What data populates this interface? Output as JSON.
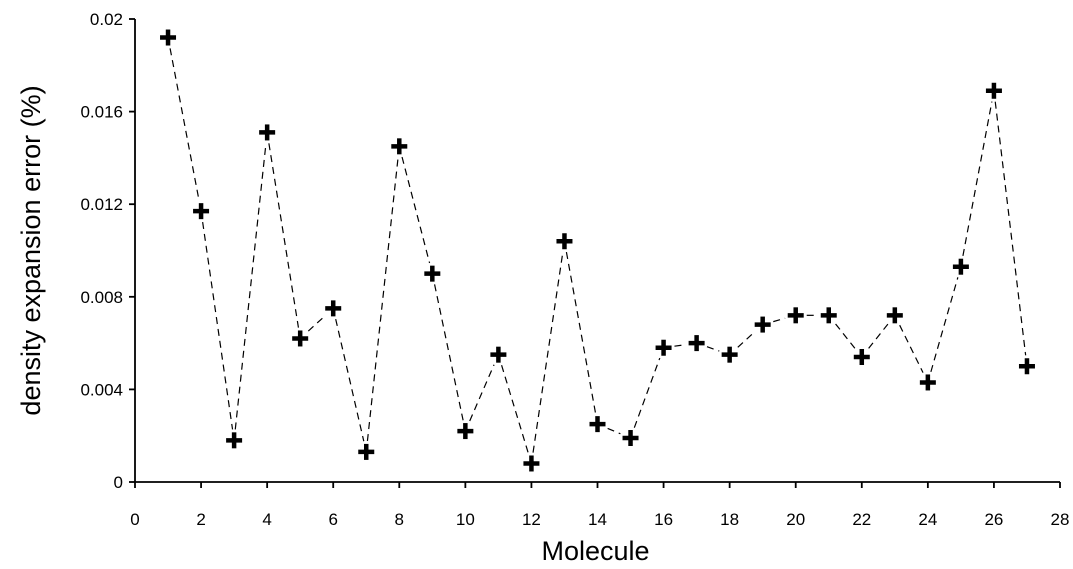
{
  "chart_data": {
    "type": "line",
    "title": "",
    "xlabel": "Molecule",
    "ylabel": "density expansion error (%)",
    "xlim": [
      0,
      28
    ],
    "ylim": [
      0,
      0.02
    ],
    "xticks": [
      0,
      2,
      4,
      6,
      8,
      10,
      12,
      14,
      16,
      18,
      20,
      22,
      24,
      26,
      28
    ],
    "yticks": [
      0,
      0.004,
      0.008,
      0.012,
      0.016,
      0.02
    ],
    "ytick_labels": [
      "0",
      "0.004",
      "0.008",
      "0.012",
      "0.016",
      "0.02"
    ],
    "grid": false,
    "legend": "none",
    "marker": "plus",
    "line_style": "dashed",
    "color": "#000000",
    "series": [
      {
        "x": [
          1,
          2,
          3,
          4,
          5,
          6,
          7,
          8,
          9,
          10,
          11,
          12,
          13,
          14,
          15,
          16,
          17,
          18,
          19,
          20,
          21,
          22,
          23,
          24,
          25,
          26,
          27
        ],
        "y": [
          0.0192,
          0.0117,
          0.0018,
          0.0151,
          0.0062,
          0.0075,
          0.0013,
          0.0145,
          0.009,
          0.0022,
          0.0055,
          0.0008,
          0.0104,
          0.0025,
          0.0019,
          0.0058,
          0.006,
          0.0055,
          0.0068,
          0.0072,
          0.0072,
          0.0054,
          0.0072,
          0.0043,
          0.0093,
          0.0169,
          0.005
        ]
      }
    ]
  }
}
